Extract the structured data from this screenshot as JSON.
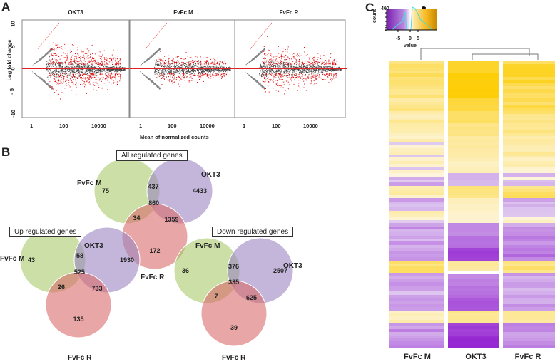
{
  "panels": {
    "a": "A",
    "b": "B",
    "c": "C"
  },
  "chart_data": [
    {
      "type": "scatter",
      "title": "MA plots",
      "facets": [
        "OKT3",
        "FvFc M",
        "FvFc R"
      ],
      "xlabel": "Mean of normalized counts",
      "ylabel": "Log fold change",
      "xscale": "log10",
      "xticks": [
        "1",
        "100",
        "10000"
      ],
      "yticks": [
        "10",
        "5",
        "0",
        "-5",
        "-10"
      ],
      "ylim": [
        -10,
        10
      ],
      "reference_line_y": 0,
      "colors": {
        "significant": "#e00000",
        "nonsignificant": "#444444",
        "reference": "#e02020"
      },
      "relative_spread": {
        "OKT3": 1.0,
        "FvFc M": 0.55,
        "FvFc R": 0.8
      }
    },
    {
      "type": "venn",
      "title": "All regulated genes",
      "sets": [
        "FvFc M",
        "OKT3",
        "FvFc R"
      ],
      "regions": {
        "FvFc M only": 75,
        "OKT3 only": 4433,
        "FvFc R only": 172,
        "FvFc M & OKT3": 437,
        "FvFc M & FvFc R": 34,
        "OKT3 & FvFc R": 1359,
        "all three": 860
      }
    },
    {
      "type": "venn",
      "title": "Up regulated genes",
      "sets": [
        "FvFc M",
        "OKT3",
        "FvFc R"
      ],
      "regions": {
        "FvFc M only": 43,
        "OKT3 only": 1930,
        "FvFc R only": 135,
        "FvFc M & OKT3": 58,
        "FvFc M & FvFc R": 26,
        "OKT3 & FvFc R": 733,
        "all three": 525
      }
    },
    {
      "type": "venn",
      "title": "Down regulated genes",
      "sets": [
        "FvFc M",
        "OKT3",
        "FvFc R"
      ],
      "regions": {
        "FvFc M only": 36,
        "OKT3 only": 2507,
        "FvFc R only": 39,
        "FvFc M & OKT3": 376,
        "FvFc M & FvFc R": 7,
        "OKT3 & FvFc R": 625,
        "all three": 335
      }
    },
    {
      "type": "heatmap",
      "columns": [
        "FvFc M",
        "OKT3",
        "FvFc R"
      ],
      "dendrogram": "OKT3 and FvFc R cluster together; FvFc M joins at root",
      "color_key": {
        "ylabel": "count",
        "xlabel": "value",
        "yticks": [
          "400",
          "0"
        ],
        "xticks": [
          "-5",
          "0",
          "5"
        ],
        "low_color": "#8a2be2",
        "mid_color": "#ffffff",
        "high_color": "#e0a000"
      },
      "row_block_values": {
        "FvFc M": [
          4,
          3.5,
          3,
          2.5,
          2,
          1.5,
          1,
          0.8,
          0.5,
          -1,
          1,
          -1.5,
          0.5,
          -2,
          -1.5,
          -2.5,
          3,
          -2,
          -1,
          -2,
          1.5,
          -2.5,
          -3
        ],
        "OKT3": [
          6,
          7,
          7,
          5,
          4,
          3,
          2,
          1.5,
          1,
          -1,
          3,
          1,
          0.5,
          -3,
          -4,
          -6,
          2,
          -3,
          -4,
          -5,
          2.5,
          -6,
          -7
        ],
        "FvFc R": [
          5,
          5.5,
          4.5,
          4,
          3,
          2.5,
          2,
          1.5,
          1,
          -1,
          3.5,
          -1,
          0.5,
          -2,
          -2.5,
          -3.5,
          3,
          -1.5,
          -1.5,
          -2,
          2,
          -2.5,
          -3
        ]
      }
    }
  ],
  "venn_titles": {
    "all": "All regulated genes",
    "up": "Up regulated genes",
    "down": "Down regulated genes"
  },
  "set_labels": {
    "m": "FvFc M",
    "okt3": "OKT3",
    "r": "FvFc R"
  },
  "ma": {
    "titles": [
      "OKT3",
      "FvFc M",
      "FvFc R"
    ],
    "ylabel": "Log fold change",
    "xlabel": "Mean of normalized counts",
    "xticks": [
      "1",
      "100",
      "10000"
    ],
    "yticks": [
      "10",
      "5",
      "0",
      "- 5",
      "-10"
    ]
  },
  "key": {
    "ylabel": "count",
    "xlabel": "value",
    "ytop": "400",
    "ybot": "0",
    "xticks": [
      "-5",
      "0",
      "5"
    ]
  },
  "heatmap_labels": [
    "FvFc M",
    "OKT3",
    "FvFc R"
  ]
}
